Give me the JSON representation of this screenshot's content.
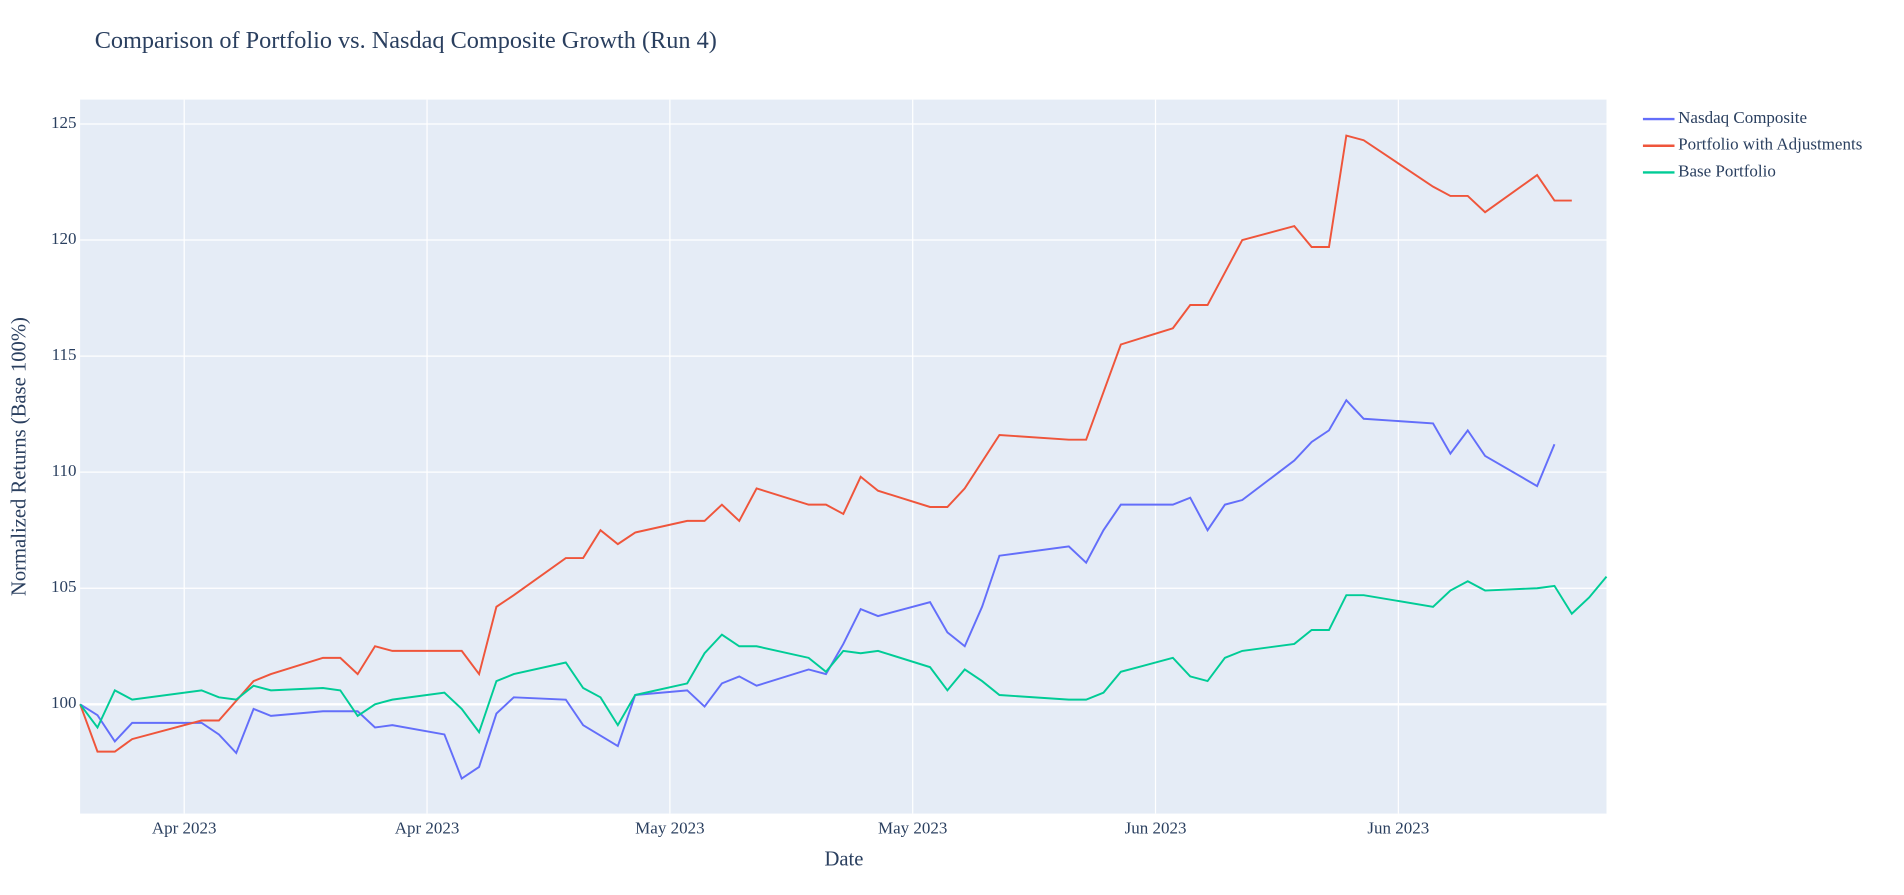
{
  "chart_data": {
    "type": "line",
    "title": "Comparison of Portfolio vs. Nasdaq Composite Growth (Run 4)",
    "x_label": "Date",
    "y_label": "Normalized Returns (Base 100%)",
    "xlim": [
      0,
      88
    ],
    "ylim": [
      95.29,
      126.05
    ],
    "xticks": [
      {
        "value": 6,
        "label": "Apr 2023"
      },
      {
        "value": 20,
        "label": "Apr 2023"
      },
      {
        "value": 34,
        "label": "May 2023"
      },
      {
        "value": 48,
        "label": "May 2023"
      },
      {
        "value": 62,
        "label": "Jun 2023"
      },
      {
        "value": 76,
        "label": "Jun 2023"
      }
    ],
    "yticks": [
      100,
      105,
      110,
      115,
      120,
      125
    ],
    "grid": true,
    "legend": "right",
    "series": [
      {
        "name": "Nasdaq Composite",
        "color": "#636efa",
        "x": [
          0,
          1,
          2,
          3,
          7,
          8,
          9,
          10,
          11,
          14,
          15,
          16,
          17,
          18,
          21,
          22,
          23,
          24,
          25,
          28,
          29,
          31,
          32,
          35,
          36,
          37,
          38,
          39,
          42,
          43,
          44,
          45,
          46,
          49,
          50,
          51,
          52,
          53,
          57,
          58,
          59,
          60,
          63,
          64,
          65,
          66,
          67,
          70,
          71,
          72,
          73,
          74,
          78,
          79,
          80,
          81,
          84,
          85
        ],
        "values": [
          100.0,
          99.53,
          98.4,
          99.2,
          99.2,
          98.7,
          97.9,
          99.8,
          99.5,
          99.7,
          99.7,
          99.7,
          99.0,
          99.1,
          98.7,
          96.8,
          97.3,
          99.6,
          100.3,
          100.2,
          99.1,
          98.2,
          100.4,
          100.6,
          99.9,
          100.9,
          101.2,
          100.8,
          101.5,
          101.3,
          102.6,
          104.1,
          103.8,
          104.4,
          103.1,
          102.5,
          104.2,
          106.4,
          106.8,
          106.1,
          107.5,
          108.6,
          108.6,
          108.9,
          107.5,
          108.6,
          108.8,
          110.5,
          111.3,
          111.8,
          113.1,
          112.3,
          112.1,
          110.8,
          111.8,
          110.7,
          109.4,
          111.2
        ]
      },
      {
        "name": "Portfolio with Adjustments",
        "color": "#ef553b",
        "x": [
          0,
          1,
          2,
          3,
          7,
          8,
          10,
          11,
          14,
          15,
          16,
          17,
          18,
          22,
          23,
          24,
          25,
          28,
          29,
          30,
          31,
          32,
          35,
          36,
          37,
          38,
          39,
          42,
          43,
          44,
          45,
          46,
          49,
          50,
          51,
          53,
          57,
          58,
          60,
          63,
          64,
          65,
          67,
          70,
          71,
          72,
          73,
          74,
          78,
          79,
          80,
          81,
          84,
          85,
          86
        ],
        "values": [
          100.0,
          97.96,
          97.96,
          98.5,
          99.3,
          99.3,
          101.0,
          101.3,
          102.0,
          102.0,
          101.3,
          102.5,
          102.3,
          102.3,
          101.3,
          104.2,
          104.7,
          106.3,
          106.3,
          107.5,
          106.9,
          107.4,
          107.9,
          107.9,
          108.6,
          107.9,
          109.3,
          108.6,
          108.6,
          108.2,
          109.8,
          109.2,
          108.5,
          108.5,
          109.3,
          111.6,
          111.4,
          111.4,
          115.5,
          116.2,
          117.2,
          117.2,
          120.0,
          120.6,
          119.7,
          119.7,
          124.5,
          124.3,
          122.3,
          121.9,
          121.9,
          121.2,
          122.8,
          121.7,
          121.7
        ]
      },
      {
        "name": "Base Portfolio",
        "color": "#00cc96",
        "x": [
          0,
          1,
          2,
          3,
          7,
          8,
          9,
          10,
          11,
          14,
          15,
          16,
          17,
          18,
          21,
          22,
          23,
          24,
          25,
          28,
          29,
          30,
          31,
          32,
          35,
          36,
          37,
          38,
          39,
          42,
          43,
          44,
          45,
          46,
          49,
          50,
          51,
          52,
          53,
          57,
          58,
          59,
          60,
          63,
          64,
          65,
          66,
          67,
          70,
          71,
          72,
          73,
          74,
          78,
          79,
          80,
          81,
          84,
          85,
          86,
          87,
          88
        ],
        "values": [
          100.0,
          99.0,
          100.6,
          100.2,
          100.6,
          100.3,
          100.2,
          100.8,
          100.6,
          100.7,
          100.6,
          99.5,
          100.0,
          100.2,
          100.5,
          99.8,
          98.8,
          101.0,
          101.3,
          101.8,
          100.7,
          100.3,
          99.1,
          100.4,
          100.9,
          102.2,
          103.0,
          102.5,
          102.5,
          102.0,
          101.4,
          102.3,
          102.2,
          102.3,
          101.6,
          100.6,
          101.5,
          101.0,
          100.4,
          100.2,
          100.2,
          100.5,
          101.4,
          102.0,
          101.2,
          101.0,
          102.0,
          102.3,
          102.6,
          103.2,
          103.2,
          104.7,
          104.7,
          104.2,
          104.9,
          105.3,
          104.9,
          105.0,
          105.1,
          103.9,
          104.6,
          105.5
        ]
      }
    ]
  }
}
